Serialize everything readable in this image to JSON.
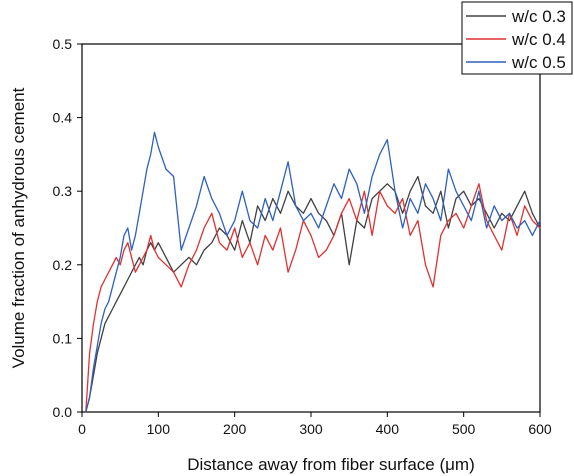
{
  "chart_data": {
    "type": "line",
    "title": "",
    "xlabel": "Distance away from fiber surface (μm)",
    "ylabel": "Volume fraction of anhydrous cement",
    "xlim": [
      0,
      600
    ],
    "ylim": [
      0,
      0.5
    ],
    "xticks": [
      "0",
      "100",
      "200",
      "300",
      "400",
      "500",
      "600"
    ],
    "yticks": [
      "0.0",
      "0.1",
      "0.2",
      "0.3",
      "0.4",
      "0.5"
    ],
    "grid": true,
    "legend_position": "top-right",
    "series": [
      {
        "name": "w/c 0.3",
        "color": "#404040",
        "x": [
          5,
          10,
          15,
          20,
          25,
          30,
          35,
          40,
          45,
          50,
          55,
          60,
          65,
          70,
          75,
          80,
          85,
          90,
          95,
          100,
          110,
          120,
          130,
          140,
          150,
          160,
          170,
          180,
          190,
          200,
          210,
          220,
          230,
          240,
          250,
          260,
          270,
          280,
          290,
          300,
          310,
          320,
          330,
          340,
          350,
          360,
          370,
          380,
          390,
          400,
          410,
          420,
          430,
          440,
          450,
          460,
          470,
          480,
          490,
          500,
          510,
          520,
          530,
          540,
          550,
          560,
          570,
          580,
          590,
          600
        ],
        "y": [
          0.0,
          0.02,
          0.05,
          0.08,
          0.1,
          0.12,
          0.13,
          0.14,
          0.15,
          0.16,
          0.17,
          0.18,
          0.19,
          0.2,
          0.21,
          0.2,
          0.22,
          0.23,
          0.22,
          0.23,
          0.21,
          0.19,
          0.2,
          0.21,
          0.2,
          0.22,
          0.23,
          0.25,
          0.24,
          0.22,
          0.26,
          0.23,
          0.28,
          0.26,
          0.29,
          0.27,
          0.3,
          0.28,
          0.27,
          0.29,
          0.27,
          0.26,
          0.24,
          0.27,
          0.2,
          0.26,
          0.25,
          0.29,
          0.3,
          0.31,
          0.3,
          0.27,
          0.3,
          0.32,
          0.28,
          0.27,
          0.3,
          0.25,
          0.29,
          0.3,
          0.28,
          0.29,
          0.27,
          0.25,
          0.27,
          0.26,
          0.28,
          0.3,
          0.27,
          0.25
        ]
      },
      {
        "name": "w/c 0.4",
        "color": "#e03131",
        "x": [
          5,
          10,
          15,
          20,
          25,
          30,
          35,
          40,
          45,
          50,
          55,
          60,
          65,
          70,
          75,
          80,
          85,
          90,
          95,
          100,
          110,
          120,
          130,
          140,
          150,
          160,
          170,
          180,
          190,
          200,
          210,
          220,
          230,
          240,
          250,
          260,
          270,
          280,
          290,
          300,
          310,
          320,
          330,
          340,
          350,
          360,
          370,
          380,
          390,
          400,
          410,
          420,
          430,
          440,
          450,
          460,
          470,
          480,
          490,
          500,
          510,
          520,
          530,
          540,
          550,
          560,
          570,
          580,
          590,
          600
        ],
        "y": [
          0.0,
          0.08,
          0.12,
          0.15,
          0.17,
          0.18,
          0.19,
          0.2,
          0.21,
          0.2,
          0.22,
          0.23,
          0.21,
          0.19,
          0.2,
          0.21,
          0.22,
          0.24,
          0.22,
          0.21,
          0.2,
          0.19,
          0.17,
          0.2,
          0.22,
          0.25,
          0.27,
          0.23,
          0.22,
          0.25,
          0.21,
          0.23,
          0.2,
          0.24,
          0.22,
          0.25,
          0.19,
          0.22,
          0.26,
          0.24,
          0.21,
          0.22,
          0.24,
          0.27,
          0.29,
          0.26,
          0.3,
          0.24,
          0.3,
          0.28,
          0.27,
          0.29,
          0.24,
          0.26,
          0.2,
          0.17,
          0.24,
          0.26,
          0.27,
          0.25,
          0.28,
          0.31,
          0.26,
          0.24,
          0.22,
          0.27,
          0.24,
          0.28,
          0.26,
          0.25
        ]
      },
      {
        "name": "w/c 0.5",
        "color": "#2f5fc0",
        "x": [
          5,
          10,
          15,
          20,
          25,
          30,
          35,
          40,
          45,
          50,
          55,
          60,
          65,
          70,
          75,
          80,
          85,
          90,
          95,
          100,
          110,
          120,
          130,
          140,
          150,
          160,
          170,
          180,
          190,
          200,
          210,
          220,
          230,
          240,
          250,
          260,
          270,
          280,
          290,
          300,
          310,
          320,
          330,
          340,
          350,
          360,
          370,
          380,
          390,
          400,
          410,
          420,
          430,
          440,
          450,
          460,
          470,
          480,
          490,
          500,
          510,
          520,
          530,
          540,
          550,
          560,
          570,
          580,
          590,
          600
        ],
        "y": [
          0.0,
          0.02,
          0.06,
          0.09,
          0.12,
          0.14,
          0.15,
          0.17,
          0.19,
          0.21,
          0.24,
          0.25,
          0.22,
          0.24,
          0.27,
          0.3,
          0.33,
          0.35,
          0.38,
          0.36,
          0.33,
          0.32,
          0.22,
          0.25,
          0.28,
          0.32,
          0.29,
          0.27,
          0.24,
          0.26,
          0.3,
          0.26,
          0.25,
          0.29,
          0.26,
          0.3,
          0.34,
          0.28,
          0.26,
          0.27,
          0.25,
          0.28,
          0.31,
          0.29,
          0.33,
          0.31,
          0.27,
          0.32,
          0.35,
          0.37,
          0.3,
          0.25,
          0.29,
          0.27,
          0.31,
          0.29,
          0.26,
          0.33,
          0.3,
          0.28,
          0.26,
          0.3,
          0.25,
          0.28,
          0.26,
          0.27,
          0.25,
          0.26,
          0.24,
          0.26
        ]
      }
    ]
  }
}
